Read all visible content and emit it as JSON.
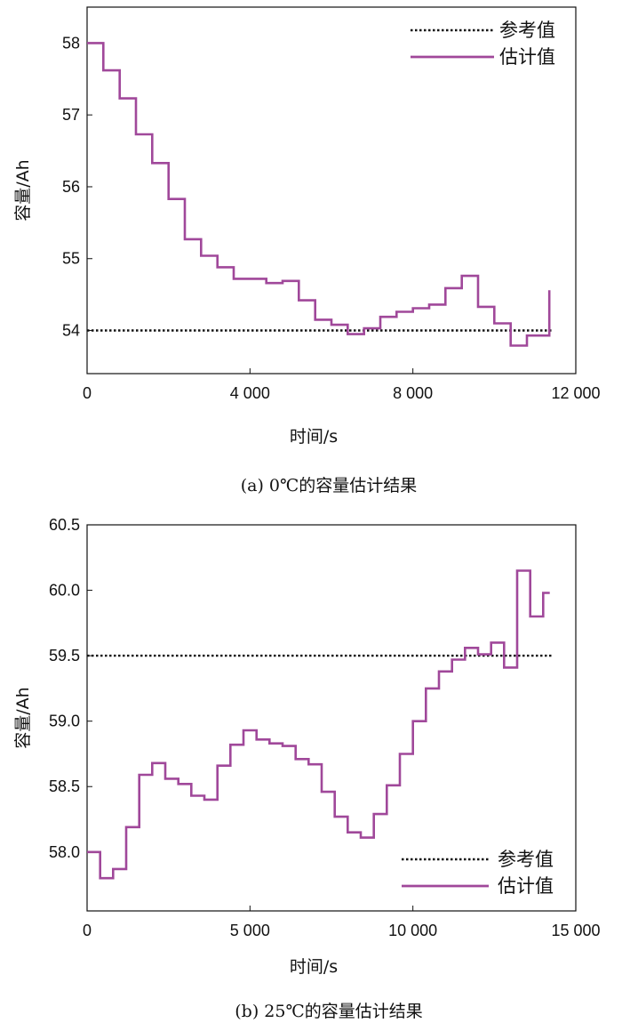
{
  "colors": {
    "estimate": "#a0489a",
    "reference": "#111111"
  },
  "chart_data": [
    {
      "type": "line",
      "caption": "(a) 0℃的容量估计结果",
      "xlabel": "时间/s",
      "ylabel": "容量/Ah",
      "xlim": [
        0,
        12000
      ],
      "ylim": [
        53.4,
        58.5
      ],
      "xticks": [
        0,
        4000,
        8000,
        12000
      ],
      "xtick_labels": [
        "0",
        "4 000",
        "8 000",
        "12 000"
      ],
      "yticks": [
        54,
        55,
        56,
        57,
        58
      ],
      "ytick_labels": [
        "54",
        "55",
        "56",
        "57",
        "58"
      ],
      "legend_position": "top-right",
      "series": [
        {
          "name": "参考值",
          "style": "dotted",
          "x": [
            0,
            11400
          ],
          "y": [
            54.0,
            54.0
          ]
        },
        {
          "name": "估计值",
          "style": "step",
          "x": [
            0,
            400,
            800,
            1200,
            1600,
            2000,
            2400,
            2800,
            3200,
            3600,
            4400,
            4800,
            5200,
            5600,
            6000,
            6400,
            6800,
            7200,
            7600,
            8000,
            8400,
            8800,
            9200,
            9600,
            10000,
            10400,
            10800,
            11200,
            11350
          ],
          "y": [
            58.0,
            57.62,
            57.23,
            56.73,
            56.33,
            55.83,
            55.27,
            55.04,
            54.88,
            54.72,
            54.66,
            54.69,
            54.42,
            54.15,
            54.08,
            53.95,
            54.03,
            54.19,
            54.26,
            54.31,
            54.36,
            54.59,
            54.76,
            54.33,
            54.1,
            53.79,
            53.93,
            53.93,
            54.56
          ]
        }
      ]
    },
    {
      "type": "line",
      "caption": "(b) 25℃的容量估计结果",
      "xlabel": "时间/s",
      "ylabel": "容量/Ah",
      "xlim": [
        0,
        15000
      ],
      "ylim": [
        57.55,
        60.5
      ],
      "xticks": [
        0,
        5000,
        10000,
        15000
      ],
      "xtick_labels": [
        "0",
        "5 000",
        "10 000",
        "15 000"
      ],
      "yticks": [
        58.0,
        58.5,
        59.0,
        59.5,
        60.0,
        60.5
      ],
      "ytick_labels": [
        "58.0",
        "58.5",
        "59.0",
        "59.5",
        "60.0",
        "60.5"
      ],
      "legend_position": "bottom-right",
      "series": [
        {
          "name": "参考值",
          "style": "dotted",
          "x": [
            0,
            14300
          ],
          "y": [
            59.5,
            59.5
          ]
        },
        {
          "name": "估计值",
          "style": "step",
          "x": [
            0,
            400,
            800,
            1200,
            1600,
            2000,
            2400,
            2800,
            3200,
            3600,
            4000,
            4400,
            4800,
            5200,
            5600,
            6000,
            6400,
            6800,
            7200,
            7600,
            8000,
            8400,
            8800,
            9200,
            9600,
            10000,
            10400,
            10800,
            11200,
            11600,
            12000,
            12400,
            12800,
            13200,
            13600,
            14000,
            14200
          ],
          "y": [
            58.0,
            57.8,
            57.87,
            58.19,
            58.59,
            58.68,
            58.56,
            58.52,
            58.43,
            58.4,
            58.66,
            58.82,
            58.93,
            58.86,
            58.83,
            58.81,
            58.71,
            58.67,
            58.46,
            58.27,
            58.15,
            58.11,
            58.29,
            58.51,
            58.75,
            59.0,
            59.25,
            59.38,
            59.47,
            59.56,
            59.51,
            59.6,
            59.41,
            60.15,
            59.8,
            59.98,
            59.98
          ]
        }
      ]
    }
  ]
}
